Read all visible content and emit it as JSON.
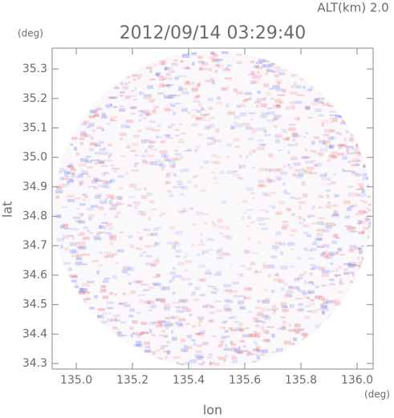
{
  "chart_data": {
    "type": "radar-map",
    "title": "2012/09/14 03:29:40",
    "annotation": "ALT(km) 2.0",
    "x_label": "lon",
    "y_label": "lat",
    "x_unit": "(deg)",
    "y_unit": "(deg)",
    "xlim": [
      134.914,
      136.057
    ],
    "ylim": [
      34.281,
      35.371
    ],
    "xticks": [
      {
        "value": 135,
        "label": "135.0"
      },
      135.2,
      135.4,
      135.6,
      135.8,
      {
        "value": 136,
        "label": "136.0"
      }
    ],
    "yticks": [
      34.3,
      34.4,
      34.5,
      34.6,
      34.7,
      34.8,
      34.9,
      {
        "value": 35,
        "label": "35.0"
      },
      35.1,
      35.2,
      35.3
    ]
  }
}
